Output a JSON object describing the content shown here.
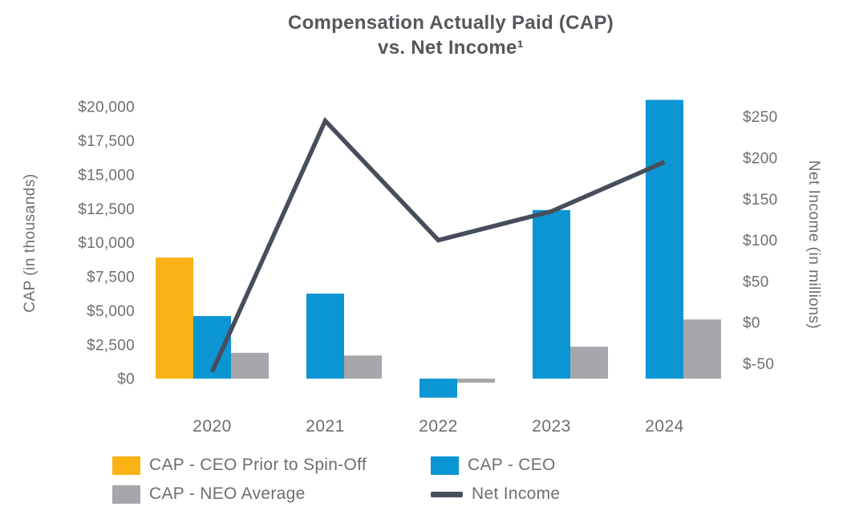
{
  "title": {
    "line1": "Compensation Actually Paid (CAP)",
    "line2": "vs. Net Income¹"
  },
  "colors": {
    "cap_ceo_prior": "#F9B314",
    "cap_ceo": "#0C95D3",
    "cap_neo_avg": "#A5A7AA",
    "net_income_line": "#474E5B",
    "text_gray": "#6C6E71",
    "title_gray": "#55575C"
  },
  "chart_data": {
    "type": "bar",
    "subtype": "grouped-bar-with-line-overlay",
    "title": "Compensation Actually Paid (CAP) vs. Net Income¹",
    "categories": [
      "2020",
      "2021",
      "2022",
      "2023",
      "2024"
    ],
    "series": [
      {
        "name": "CAP - CEO Prior to Spin-Off",
        "type": "bar",
        "axis": "left",
        "color": "#F9B314",
        "values": [
          8900,
          null,
          null,
          null,
          null
        ]
      },
      {
        "name": "CAP - CEO",
        "type": "bar",
        "axis": "left",
        "color": "#0C95D3",
        "values": [
          4600,
          6250,
          -1400,
          12400,
          20500
        ]
      },
      {
        "name": "CAP - NEO Average",
        "type": "bar",
        "axis": "left",
        "color": "#A5A7AA",
        "values": [
          1900,
          1700,
          -300,
          2350,
          4350
        ]
      },
      {
        "name": "Net Income",
        "type": "line",
        "axis": "right",
        "color": "#474E5B",
        "values": [
          -60,
          245,
          100,
          135,
          195
        ]
      }
    ],
    "left_axis": {
      "label": "CAP (in thousands)",
      "tick_values": [
        20000,
        17500,
        15000,
        12500,
        10000,
        7500,
        5000,
        2500,
        0
      ],
      "tick_labels": [
        "$20,000",
        "$17,500",
        "$15,000",
        "$12,500",
        "$10,000",
        "$7,500",
        "$5,000",
        "$2,500",
        "$0"
      ],
      "ylim": [
        -2500,
        21000
      ]
    },
    "right_axis": {
      "label": "Net Income (in millions)",
      "tick_values": [
        250,
        200,
        150,
        100,
        50,
        0,
        -50
      ],
      "tick_labels": [
        "$250",
        "$200",
        "$150",
        "$100",
        "$50",
        "$0",
        "$-50"
      ],
      "ylim": [
        -85,
        260
      ]
    },
    "grid": false,
    "legend_position": "bottom-left"
  }
}
